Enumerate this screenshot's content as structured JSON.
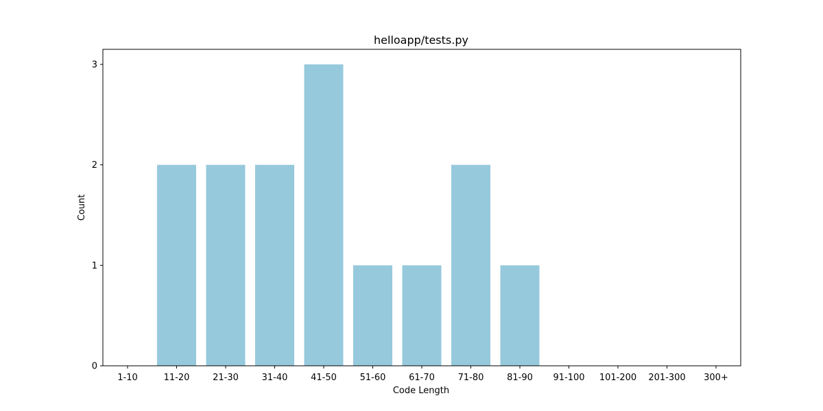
{
  "chart_data": {
    "type": "bar",
    "title": "helloapp/tests.py",
    "xlabel": "Code Length",
    "ylabel": "Count",
    "categories": [
      "1-10",
      "11-20",
      "21-30",
      "31-40",
      "41-50",
      "51-60",
      "61-70",
      "71-80",
      "81-90",
      "91-100",
      "101-200",
      "201-300",
      "300+"
    ],
    "values": [
      0,
      2,
      2,
      2,
      3,
      1,
      1,
      2,
      1,
      0,
      0,
      0,
      0
    ],
    "yticks": [
      "0",
      "1",
      "2",
      "3"
    ],
    "ylim": [
      0,
      3.15
    ],
    "bar_color": "#96c9dc",
    "grid": false,
    "legend": "none"
  }
}
